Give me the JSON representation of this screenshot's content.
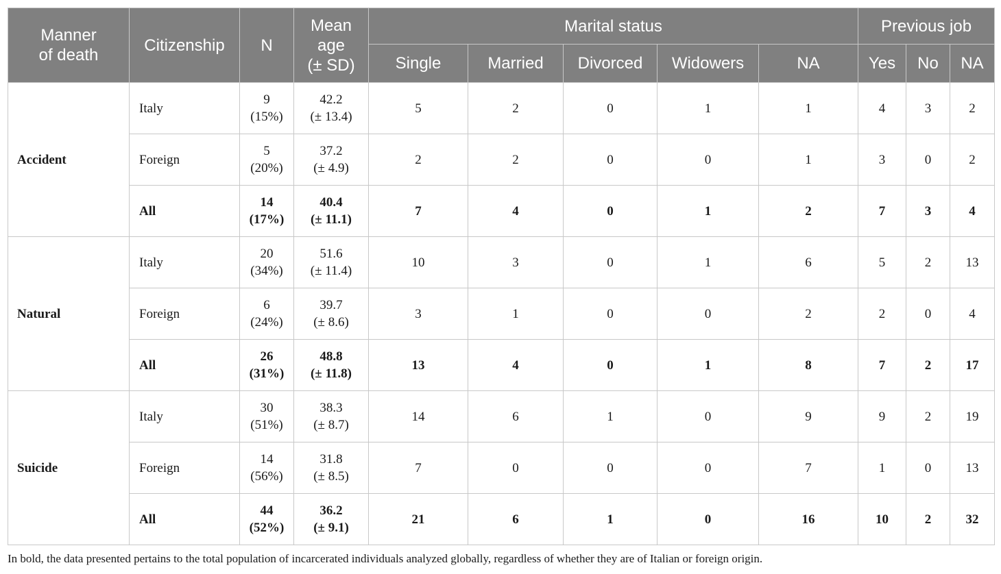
{
  "headers": {
    "manner": [
      "Manner",
      "of death"
    ],
    "citizenship": "Citizenship",
    "n": "N",
    "mean_age": [
      "Mean",
      "age",
      "(± SD)"
    ],
    "marital_status": "Marital status",
    "previous_job": "Previous job",
    "marital_sub": [
      "Single",
      "Married",
      "Divorced",
      "Widowers",
      "NA"
    ],
    "job_sub": [
      "Yes",
      "No",
      "NA"
    ]
  },
  "groups": [
    {
      "manner": "Accident",
      "rows": [
        {
          "cit": "Italy",
          "n": "9",
          "pct": "(15%)",
          "mean": "42.2",
          "sd": "(± 13.4)",
          "single": "5",
          "married": "2",
          "divorced": "0",
          "widowers": "1",
          "ms_na": "1",
          "yes": "4",
          "no": "3",
          "job_na": "2"
        },
        {
          "cit": "Foreign",
          "n": "5",
          "pct": "(20%)",
          "mean": "37.2",
          "sd": "(± 4.9)",
          "single": "2",
          "married": "2",
          "divorced": "0",
          "widowers": "0",
          "ms_na": "1",
          "yes": "3",
          "no": "0",
          "job_na": "2"
        },
        {
          "cit": "All",
          "n": "14",
          "pct": "(17%)",
          "mean": "40.4",
          "sd": "(± 11.1)",
          "single": "7",
          "married": "4",
          "divorced": "0",
          "widowers": "1",
          "ms_na": "2",
          "yes": "7",
          "no": "3",
          "job_na": "4"
        }
      ]
    },
    {
      "manner": "Natural",
      "rows": [
        {
          "cit": "Italy",
          "n": "20",
          "pct": "(34%)",
          "mean": "51.6",
          "sd": "(± 11.4)",
          "single": "10",
          "married": "3",
          "divorced": "0",
          "widowers": "1",
          "ms_na": "6",
          "yes": "5",
          "no": "2",
          "job_na": "13"
        },
        {
          "cit": "Foreign",
          "n": "6",
          "pct": "(24%)",
          "mean": "39.7",
          "sd": "(± 8.6)",
          "single": "3",
          "married": "1",
          "divorced": "0",
          "widowers": "0",
          "ms_na": "2",
          "yes": "2",
          "no": "0",
          "job_na": "4"
        },
        {
          "cit": "All",
          "n": "26",
          "pct": "(31%)",
          "mean": "48.8",
          "sd": "(± 11.8)",
          "single": "13",
          "married": "4",
          "divorced": "0",
          "widowers": "1",
          "ms_na": "8",
          "yes": "7",
          "no": "2",
          "job_na": "17"
        }
      ]
    },
    {
      "manner": "Suicide",
      "rows": [
        {
          "cit": "Italy",
          "n": "30",
          "pct": "(51%)",
          "mean": "38.3",
          "sd": "(± 8.7)",
          "single": "14",
          "married": "6",
          "divorced": "1",
          "widowers": "0",
          "ms_na": "9",
          "yes": "9",
          "no": "2",
          "job_na": "19"
        },
        {
          "cit": "Foreign",
          "n": "14",
          "pct": "(56%)",
          "mean": "31.8",
          "sd": "(± 8.5)",
          "single": "7",
          "married": "0",
          "divorced": "0",
          "widowers": "0",
          "ms_na": "7",
          "yes": "1",
          "no": "0",
          "job_na": "13"
        },
        {
          "cit": "All",
          "n": "44",
          "pct": "(52%)",
          "mean": "36.2",
          "sd": "(± 9.1)",
          "single": "21",
          "married": "6",
          "divorced": "1",
          "widowers": "0",
          "ms_na": "16",
          "yes": "10",
          "no": "2",
          "job_na": "32"
        }
      ]
    }
  ],
  "footnote": "In bold, the data presented pertains to the total population of incarcerated individuals analyzed globally, regardless of whether they are of Italian or foreign origin."
}
